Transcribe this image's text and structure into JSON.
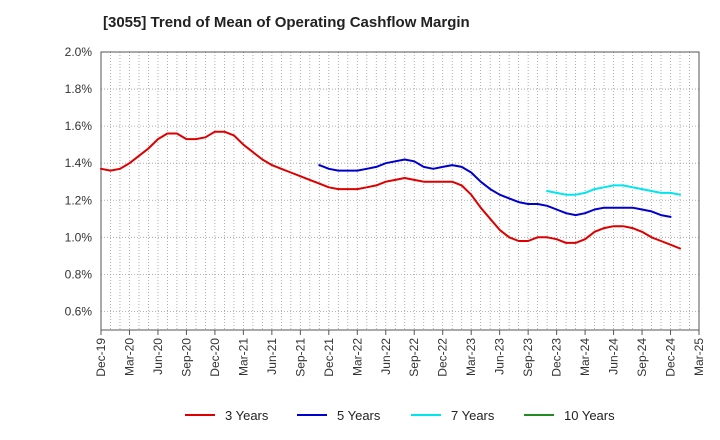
{
  "chart_data": {
    "type": "line",
    "title": "[3055]  Trend of Mean of Operating Cashflow Margin",
    "xlabel": "",
    "ylabel": "",
    "x": [
      "Dec-19",
      "Mar-20",
      "Jun-20",
      "Sep-20",
      "Dec-20",
      "Mar-21",
      "Jun-21",
      "Sep-21",
      "Dec-21",
      "Mar-22",
      "Jun-22",
      "Sep-22",
      "Dec-22",
      "Mar-23",
      "Jun-23",
      "Sep-23",
      "Dec-23",
      "Mar-24",
      "Jun-24",
      "Sep-24",
      "Dec-24",
      "Mar-25"
    ],
    "ylim": [
      0.5,
      2.0
    ],
    "yticks": [
      "0.6%",
      "0.8%",
      "1.0%",
      "1.2%",
      "1.4%",
      "1.6%",
      "1.8%",
      "2.0%"
    ],
    "ytick_values": [
      0.6,
      0.8,
      1.0,
      1.2,
      1.4,
      1.6,
      1.8,
      2.0
    ],
    "grid": true,
    "legend_position": "bottom",
    "series": [
      {
        "name": "3 Years",
        "color": "#dd0000",
        "points": [
          [
            "Dec-19",
            1.37
          ],
          [
            "Jan-20",
            1.36
          ],
          [
            "Feb-20",
            1.37
          ],
          [
            "Mar-20",
            1.4
          ],
          [
            "Apr-20",
            1.44
          ],
          [
            "May-20",
            1.48
          ],
          [
            "Jun-20",
            1.53
          ],
          [
            "Jul-20",
            1.56
          ],
          [
            "Aug-20",
            1.56
          ],
          [
            "Sep-20",
            1.53
          ],
          [
            "Oct-20",
            1.53
          ],
          [
            "Nov-20",
            1.54
          ],
          [
            "Dec-20",
            1.57
          ],
          [
            "Jan-21",
            1.57
          ],
          [
            "Feb-21",
            1.55
          ],
          [
            "Mar-21",
            1.5
          ],
          [
            "Apr-21",
            1.46
          ],
          [
            "May-21",
            1.42
          ],
          [
            "Jun-21",
            1.39
          ],
          [
            "Jul-21",
            1.37
          ],
          [
            "Aug-21",
            1.35
          ],
          [
            "Sep-21",
            1.33
          ],
          [
            "Oct-21",
            1.31
          ],
          [
            "Nov-21",
            1.29
          ],
          [
            "Dec-21",
            1.27
          ],
          [
            "Jan-22",
            1.26
          ],
          [
            "Feb-22",
            1.26
          ],
          [
            "Mar-22",
            1.26
          ],
          [
            "Apr-22",
            1.27
          ],
          [
            "May-22",
            1.28
          ],
          [
            "Jun-22",
            1.3
          ],
          [
            "Jul-22",
            1.31
          ],
          [
            "Aug-22",
            1.32
          ],
          [
            "Sep-22",
            1.31
          ],
          [
            "Oct-22",
            1.3
          ],
          [
            "Nov-22",
            1.3
          ],
          [
            "Dec-22",
            1.3
          ],
          [
            "Jan-23",
            1.3
          ],
          [
            "Feb-23",
            1.28
          ],
          [
            "Mar-23",
            1.23
          ],
          [
            "Apr-23",
            1.16
          ],
          [
            "May-23",
            1.1
          ],
          [
            "Jun-23",
            1.04
          ],
          [
            "Jul-23",
            1.0
          ],
          [
            "Aug-23",
            0.98
          ],
          [
            "Sep-23",
            0.98
          ],
          [
            "Oct-23",
            1.0
          ],
          [
            "Nov-23",
            1.0
          ],
          [
            "Dec-23",
            0.99
          ],
          [
            "Jan-24",
            0.97
          ],
          [
            "Feb-24",
            0.97
          ],
          [
            "Mar-24",
            0.99
          ],
          [
            "Apr-24",
            1.03
          ],
          [
            "May-24",
            1.05
          ],
          [
            "Jun-24",
            1.06
          ],
          [
            "Jul-24",
            1.06
          ],
          [
            "Aug-24",
            1.05
          ],
          [
            "Sep-24",
            1.03
          ],
          [
            "Oct-24",
            1.0
          ],
          [
            "Nov-24",
            0.98
          ],
          [
            "Dec-24",
            0.96
          ],
          [
            "Jan-25",
            0.94
          ]
        ]
      },
      {
        "name": "5 Years",
        "color": "#0000cc",
        "points": [
          [
            "Nov-21",
            1.39
          ],
          [
            "Dec-21",
            1.37
          ],
          [
            "Jan-22",
            1.36
          ],
          [
            "Feb-22",
            1.36
          ],
          [
            "Mar-22",
            1.36
          ],
          [
            "Apr-22",
            1.37
          ],
          [
            "May-22",
            1.38
          ],
          [
            "Jun-22",
            1.4
          ],
          [
            "Jul-22",
            1.41
          ],
          [
            "Aug-22",
            1.42
          ],
          [
            "Sep-22",
            1.41
          ],
          [
            "Oct-22",
            1.38
          ],
          [
            "Nov-22",
            1.37
          ],
          [
            "Dec-22",
            1.38
          ],
          [
            "Jan-23",
            1.39
          ],
          [
            "Feb-23",
            1.38
          ],
          [
            "Mar-23",
            1.35
          ],
          [
            "Apr-23",
            1.3
          ],
          [
            "May-23",
            1.26
          ],
          [
            "Jun-23",
            1.23
          ],
          [
            "Jul-23",
            1.21
          ],
          [
            "Aug-23",
            1.19
          ],
          [
            "Sep-23",
            1.18
          ],
          [
            "Oct-23",
            1.18
          ],
          [
            "Nov-23",
            1.17
          ],
          [
            "Dec-23",
            1.15
          ],
          [
            "Jan-24",
            1.13
          ],
          [
            "Feb-24",
            1.12
          ],
          [
            "Mar-24",
            1.13
          ],
          [
            "Apr-24",
            1.15
          ],
          [
            "May-24",
            1.16
          ],
          [
            "Jun-24",
            1.16
          ],
          [
            "Jul-24",
            1.16
          ],
          [
            "Aug-24",
            1.16
          ],
          [
            "Sep-24",
            1.15
          ],
          [
            "Oct-24",
            1.14
          ],
          [
            "Nov-24",
            1.12
          ],
          [
            "Dec-24",
            1.11
          ]
        ]
      },
      {
        "name": "7 Years",
        "color": "#00e5ee",
        "points": [
          [
            "Nov-23",
            1.25
          ],
          [
            "Dec-23",
            1.24
          ],
          [
            "Jan-24",
            1.23
          ],
          [
            "Feb-24",
            1.23
          ],
          [
            "Mar-24",
            1.24
          ],
          [
            "Apr-24",
            1.26
          ],
          [
            "May-24",
            1.27
          ],
          [
            "Jun-24",
            1.28
          ],
          [
            "Jul-24",
            1.28
          ],
          [
            "Aug-24",
            1.27
          ],
          [
            "Sep-24",
            1.26
          ],
          [
            "Oct-24",
            1.25
          ],
          [
            "Nov-24",
            1.24
          ],
          [
            "Dec-24",
            1.24
          ],
          [
            "Jan-25",
            1.23
          ]
        ]
      },
      {
        "name": "10 Years",
        "color": "#228b22",
        "points": []
      }
    ]
  }
}
